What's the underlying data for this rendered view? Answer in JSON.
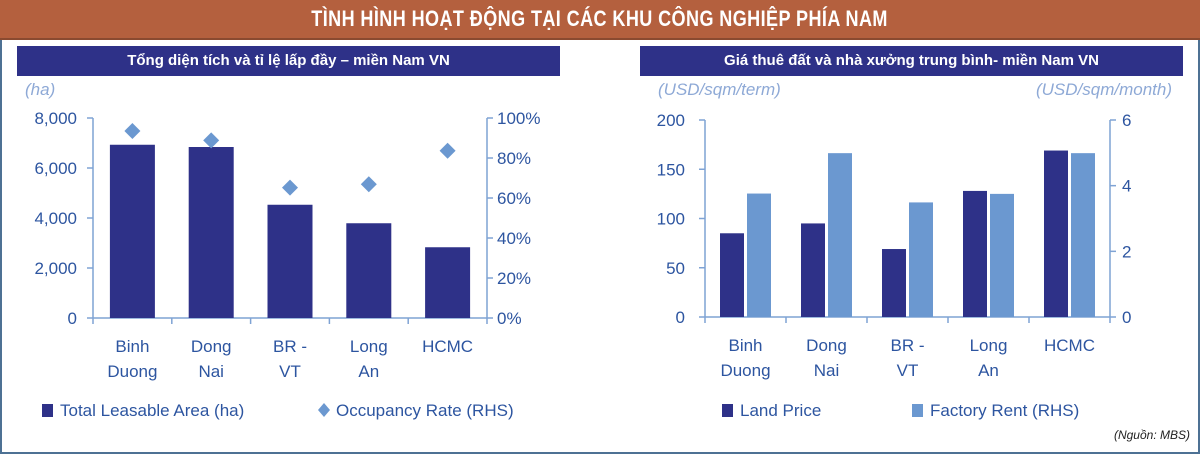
{
  "header": {
    "title": "TÌNH HÌNH HOẠT ĐỘNG TẠI CÁC KHU CÔNG NGHIỆP PHÍA NAM"
  },
  "colors": {
    "header": "#b4603e",
    "navy": "#2e3188",
    "light_blue": "#6b98d0",
    "axis_text": "#2d55a0"
  },
  "chart_data": [
    {
      "type": "bar",
      "title": "Tổng diện tích và tỉ lệ lấp đầy – miền Nam VN",
      "ylabel": "(ha)",
      "categories": [
        [
          "Binh",
          "Duong"
        ],
        [
          "Dong",
          "Nai"
        ],
        [
          "BR -",
          "VT"
        ],
        [
          "Long",
          "An"
        ],
        [
          "HCMC"
        ]
      ],
      "ylim": [
        0,
        8000
      ],
      "y_ticks": [
        "0",
        "2,000",
        "4,000",
        "6,000",
        "8,000"
      ],
      "y2lim": [
        0,
        100
      ],
      "y2_ticks": [
        "0%",
        "20%",
        "40%",
        "60%",
        "80%",
        "100%"
      ],
      "series": [
        {
          "name": "Total Leasable Area (ha)",
          "kind": "bar",
          "axis": "left",
          "color": "#2e3188",
          "values": [
            6930,
            6840,
            4530,
            3790,
            2830
          ]
        },
        {
          "name": "Occupancy Rate (RHS)",
          "kind": "diamond",
          "axis": "right",
          "color": "#6b98d0",
          "values": [
            93.5,
            88.8,
            65.2,
            66.9,
            83.6
          ]
        }
      ],
      "legend": "bottom"
    },
    {
      "type": "bar",
      "title": "Giá thuê đất và nhà xưởng trung bình- miền Nam VN",
      "ylabel": "(USD/sqm/term)",
      "y2label": "(USD/sqm/month)",
      "categories": [
        [
          "Binh",
          "Duong"
        ],
        [
          "Dong",
          "Nai"
        ],
        [
          "BR -",
          "VT"
        ],
        [
          "Long",
          "An"
        ],
        [
          "HCMC"
        ]
      ],
      "ylim": [
        0,
        200
      ],
      "y_ticks": [
        "0",
        "50",
        "100",
        "150",
        "200"
      ],
      "y2lim": [
        0,
        6
      ],
      "y2_ticks": [
        "0",
        "2",
        "4",
        "6"
      ],
      "series": [
        {
          "name": "Land Price",
          "kind": "bar",
          "axis": "left",
          "color": "#2e3188",
          "values": [
            85,
            95,
            69,
            128,
            169
          ]
        },
        {
          "name": "Factory Rent (RHS)",
          "kind": "bar",
          "axis": "right",
          "color": "#6b98d0",
          "values": [
            3.76,
            4.99,
            3.49,
            3.75,
            4.99
          ]
        }
      ],
      "legend": "bottom"
    }
  ],
  "source": "(Nguồn: MBS)"
}
